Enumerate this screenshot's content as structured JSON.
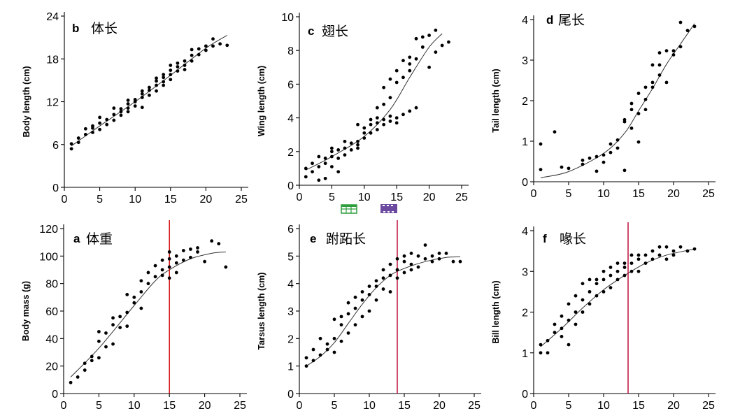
{
  "chart_data": [
    {
      "type": "scatter",
      "panel": "b",
      "title": "体长",
      "ylabel": "Body length (cm)",
      "xlim": [
        0,
        25
      ],
      "ylim": [
        0,
        24
      ],
      "xticks": [
        0,
        5,
        10,
        15,
        20,
        25
      ],
      "yticks": [
        0,
        6,
        12,
        18,
        24
      ],
      "xtick_labels": [
        "0",
        "5",
        "10",
        "15",
        "20",
        "25"
      ],
      "ytick_labels": [
        "0",
        "6",
        "12",
        "18",
        "24"
      ],
      "fit": {
        "x": [
          1,
          5,
          10,
          15,
          20,
          23
        ],
        "y": [
          5.8,
          8.6,
          12.0,
          15.7,
          19.5,
          21.3
        ]
      },
      "series": [
        {
          "x": [
            1,
            1,
            2,
            2,
            3,
            3,
            4,
            4,
            4,
            5,
            5,
            5,
            6,
            6,
            7,
            7,
            7,
            8,
            8,
            8,
            9,
            9,
            9,
            9,
            10,
            10,
            10,
            11,
            11,
            11,
            11,
            12,
            12,
            12,
            13,
            13,
            13,
            13,
            14,
            14,
            14,
            14,
            15,
            15,
            15,
            15,
            16,
            16,
            16,
            17,
            17,
            17,
            18,
            18,
            18,
            19,
            19,
            20,
            20,
            21,
            21,
            22,
            23
          ],
          "y": [
            5.4,
            6.1,
            6.3,
            6.9,
            7.4,
            8.2,
            7.7,
            8.3,
            8.6,
            8.1,
            9.0,
            9.8,
            8.8,
            9.5,
            9.4,
            10.2,
            11.1,
            10.1,
            10.6,
            11.0,
            10.6,
            11.1,
            11.7,
            12.2,
            11.4,
            12.0,
            12.3,
            11.2,
            12.6,
            13.1,
            13.5,
            12.9,
            13.6,
            14.0,
            13.5,
            14.3,
            14.9,
            15.3,
            14.3,
            14.8,
            15.4,
            15.8,
            15.1,
            15.8,
            16.4,
            17.1,
            16.3,
            16.9,
            17.4,
            16.5,
            17.1,
            17.7,
            17.7,
            18.5,
            19.3,
            18.6,
            19.4,
            19.2,
            19.8,
            19.8,
            20.8,
            20.1,
            19.9
          ]
        }
      ]
    },
    {
      "type": "scatter",
      "panel": "c",
      "title": "翅长",
      "ylabel": "Wing length (cm)",
      "xlim": [
        0,
        25
      ],
      "ylim": [
        0,
        10
      ],
      "xticks": [
        0,
        5,
        10,
        15,
        20,
        25
      ],
      "yticks": [
        0,
        2,
        4,
        6,
        8,
        10
      ],
      "xtick_labels": [
        "0",
        "5",
        "10",
        "15",
        "20",
        "25"
      ],
      "ytick_labels": [
        "0",
        "2",
        "4",
        "6",
        "8",
        "10"
      ],
      "fit": {
        "x": [
          1,
          5,
          10,
          14,
          17,
          20,
          22
        ],
        "y": [
          0.9,
          1.7,
          2.9,
          4.5,
          6.4,
          8.2,
          9.0
        ]
      },
      "series": [
        {
          "x": [
            1,
            1,
            2,
            2,
            3,
            3,
            3,
            4,
            4,
            4,
            5,
            5,
            5,
            5,
            6,
            6,
            6,
            7,
            7,
            7,
            8,
            8,
            9,
            9,
            9,
            9,
            10,
            10,
            10,
            11,
            11,
            11,
            12,
            12,
            12,
            12,
            13,
            13,
            13,
            13,
            14,
            14,
            14,
            14,
            15,
            15,
            15,
            15,
            16,
            16,
            16,
            17,
            17,
            17,
            17,
            18,
            18,
            18,
            19,
            19,
            20,
            20,
            21,
            21,
            22,
            23
          ],
          "y": [
            0.5,
            1.0,
            0.8,
            1.3,
            0.3,
            1.1,
            1.7,
            0.4,
            1.3,
            1.6,
            1.1,
            1.7,
            2.0,
            2.2,
            0.8,
            1.6,
            2.1,
            1.8,
            2.2,
            2.6,
            2.1,
            2.5,
            2.2,
            2.4,
            2.6,
            3.6,
            2.8,
            3.1,
            3.4,
            3.1,
            3.6,
            3.9,
            3.3,
            3.7,
            4.0,
            4.6,
            3.6,
            3.9,
            4.8,
            5.8,
            3.8,
            4.1,
            5.2,
            6.3,
            3.7,
            4.0,
            6.1,
            6.8,
            4.2,
            6.4,
            7.4,
            4.4,
            6.8,
            7.2,
            7.6,
            4.6,
            7.5,
            8.7,
            8.2,
            8.8,
            7.0,
            8.9,
            7.9,
            9.2,
            8.3,
            8.5
          ]
        }
      ]
    },
    {
      "type": "scatter",
      "panel": "d",
      "title": "尾长",
      "ylabel": "Tail length (cm)",
      "xlim": [
        0,
        25
      ],
      "ylim": [
        0,
        4
      ],
      "xticks": [
        0,
        5,
        10,
        15,
        20,
        25
      ],
      "yticks": [
        0,
        1,
        2,
        3,
        4
      ],
      "xtick_labels": [
        "0",
        "5",
        "10",
        "15",
        "20",
        "25"
      ],
      "ytick_labels": [
        "0",
        "1",
        "2",
        "3",
        "4"
      ],
      "fit": {
        "x": [
          1,
          5,
          10,
          13,
          15,
          17,
          19,
          21,
          23
        ],
        "y": [
          0.1,
          0.25,
          0.7,
          1.2,
          1.75,
          2.3,
          2.9,
          3.4,
          3.9
        ]
      },
      "series": [
        {
          "x": [
            1,
            1,
            3,
            4,
            5,
            7,
            7,
            8,
            9,
            9,
            10,
            10,
            11,
            11,
            12,
            12,
            13,
            13,
            13,
            14,
            14,
            14,
            15,
            15,
            15,
            16,
            16,
            16,
            17,
            17,
            17,
            18,
            18,
            18,
            19,
            19,
            20,
            20,
            21,
            21,
            22,
            23
          ],
          "y": [
            0.3,
            0.93,
            1.23,
            0.36,
            0.33,
            0.43,
            0.53,
            0.58,
            0.26,
            0.62,
            0.48,
            0.66,
            0.72,
            0.93,
            1.03,
            0.83,
            0.28,
            1.48,
            1.53,
            1.32,
            1.78,
            1.93,
            0.98,
            1.68,
            2.18,
            1.78,
            2.33,
            2.03,
            2.33,
            2.45,
            2.88,
            2.63,
            2.88,
            3.18,
            2.45,
            3.23,
            3.23,
            3.13,
            3.33,
            3.93,
            3.73,
            3.83
          ]
        }
      ]
    },
    {
      "type": "scatter",
      "panel": "a",
      "title": "体重",
      "ylabel": "Body mass (g)",
      "xlim": [
        0,
        25
      ],
      "ylim": [
        0,
        120
      ],
      "xticks": [
        0,
        5,
        10,
        15,
        20,
        25
      ],
      "yticks": [
        0,
        20,
        40,
        60,
        80,
        100,
        120
      ],
      "xtick_labels": [
        "0",
        "5",
        "10",
        "15",
        "20",
        "25"
      ],
      "ytick_labels": [
        "0",
        "20",
        "40",
        "60",
        "80",
        "100",
        "120"
      ],
      "vline": 15,
      "vline_color": "#d40000",
      "fit": {
        "x": [
          1,
          5,
          10,
          13,
          15,
          18,
          21,
          23
        ],
        "y": [
          12,
          33,
          64,
          82,
          90,
          98,
          102,
          103
        ]
      },
      "series": [
        {
          "x": [
            1,
            2,
            3,
            3,
            4,
            4,
            5,
            5,
            5,
            6,
            6,
            7,
            7,
            7,
            8,
            8,
            9,
            9,
            9,
            10,
            10,
            11,
            11,
            11,
            12,
            12,
            13,
            13,
            14,
            14,
            14,
            15,
            15,
            15,
            15,
            16,
            16,
            16,
            17,
            17,
            18,
            18,
            19,
            19,
            20,
            21,
            22,
            23
          ],
          "y": [
            8,
            12,
            17,
            22,
            24,
            27,
            26,
            38,
            45,
            34,
            44,
            36,
            50,
            55,
            48,
            56,
            49,
            59,
            72,
            66,
            70,
            62,
            74,
            82,
            80,
            88,
            85,
            93,
            86,
            90,
            97,
            84,
            92,
            98,
            103,
            88,
            95,
            100,
            97,
            104,
            99,
            105,
            103,
            106,
            96,
            111,
            109,
            92
          ]
        }
      ]
    },
    {
      "type": "scatter",
      "panel": "e",
      "title": "跗跖长",
      "ylabel": "Tarsus length (cm)",
      "xlim": [
        0,
        25
      ],
      "ylim": [
        0,
        6
      ],
      "xticks": [
        0,
        5,
        10,
        15,
        20,
        25
      ],
      "yticks": [
        0,
        1,
        2,
        3,
        4,
        5,
        6
      ],
      "xtick_labels": [
        "0",
        "5",
        "10",
        "15",
        "20",
        "25"
      ],
      "ytick_labels": [
        "0",
        "1",
        "2",
        "3",
        "4",
        "5",
        "6"
      ],
      "vline": 14,
      "vline_color": "#b8002e",
      "fit": {
        "x": [
          1,
          3,
          5,
          7,
          9,
          11,
          13,
          15,
          18,
          21,
          23
        ],
        "y": [
          1.0,
          1.35,
          1.85,
          2.55,
          3.25,
          3.85,
          4.3,
          4.55,
          4.8,
          4.95,
          4.97
        ]
      },
      "series": [
        {
          "x": [
            1,
            1,
            2,
            2,
            3,
            3,
            4,
            4,
            5,
            5,
            5,
            6,
            6,
            6,
            7,
            7,
            7,
            8,
            8,
            8,
            9,
            9,
            9,
            10,
            10,
            10,
            11,
            11,
            11,
            12,
            12,
            12,
            13,
            13,
            13,
            14,
            14,
            14,
            15,
            15,
            15,
            16,
            16,
            16,
            17,
            17,
            18,
            18,
            19,
            19,
            20,
            20,
            21,
            22,
            23
          ],
          "y": [
            1.0,
            1.3,
            1.2,
            1.6,
            1.4,
            2.0,
            1.6,
            1.8,
            1.5,
            2.0,
            2.7,
            1.9,
            2.5,
            2.8,
            2.2,
            2.9,
            3.3,
            2.5,
            3.1,
            3.5,
            2.8,
            3.4,
            3.7,
            3.0,
            3.6,
            3.9,
            3.4,
            3.9,
            4.1,
            3.8,
            4.2,
            4.5,
            3.7,
            4.3,
            4.7,
            4.2,
            4.5,
            4.9,
            4.4,
            4.8,
            5.0,
            4.5,
            4.7,
            5.1,
            4.6,
            5.0,
            4.9,
            5.4,
            4.8,
            5.0,
            4.9,
            5.1,
            5.1,
            4.8,
            4.8
          ]
        }
      ]
    },
    {
      "type": "scatter",
      "panel": "f",
      "title": "喙长",
      "ylabel": "Bill length (cm)",
      "xlim": [
        0,
        25
      ],
      "ylim": [
        0,
        4
      ],
      "xticks": [
        0,
        5,
        10,
        15,
        20,
        25
      ],
      "yticks": [
        0,
        1,
        2,
        3,
        4
      ],
      "xtick_labels": [
        "0",
        "5",
        "10",
        "15",
        "20",
        "25"
      ],
      "ytick_labels": [
        "0",
        "1",
        "2",
        "3",
        "4"
      ],
      "vline": 13.5,
      "vline_color": "#b8002e",
      "fit": {
        "x": [
          1,
          4,
          7,
          10,
          13,
          16,
          19,
          23
        ],
        "y": [
          1.15,
          1.6,
          2.1,
          2.55,
          2.9,
          3.2,
          3.4,
          3.55
        ]
      },
      "series": [
        {
          "x": [
            1,
            1,
            2,
            2,
            3,
            3,
            4,
            4,
            4,
            5,
            5,
            5,
            6,
            6,
            6,
            7,
            7,
            7,
            8,
            8,
            8,
            9,
            9,
            9,
            10,
            10,
            10,
            11,
            11,
            11,
            12,
            12,
            12,
            13,
            13,
            13,
            14,
            14,
            14,
            15,
            15,
            15,
            16,
            16,
            17,
            17,
            18,
            18,
            19,
            19,
            20,
            20,
            21,
            22,
            23
          ],
          "y": [
            1.0,
            1.2,
            1.0,
            1.3,
            1.5,
            1.7,
            1.4,
            1.6,
            1.9,
            1.2,
            1.8,
            2.2,
            1.7,
            2.0,
            2.4,
            2.0,
            2.3,
            2.7,
            2.2,
            2.5,
            2.8,
            2.4,
            2.7,
            2.8,
            2.5,
            2.8,
            3.0,
            2.6,
            2.9,
            3.1,
            2.8,
            3.0,
            3.2,
            2.9,
            3.1,
            3.2,
            3.0,
            3.2,
            3.4,
            3.0,
            3.3,
            3.4,
            3.2,
            3.4,
            3.3,
            3.5,
            3.4,
            3.6,
            3.3,
            3.6,
            3.4,
            3.5,
            3.6,
            3.5,
            3.55
          ]
        }
      ]
    }
  ],
  "decorations": {
    "table_icon": "table-icon",
    "film_icon": "film-strip-icon",
    "table_icon_color": "#2e9e3c",
    "film_icon_color": "#6b4aa0"
  }
}
